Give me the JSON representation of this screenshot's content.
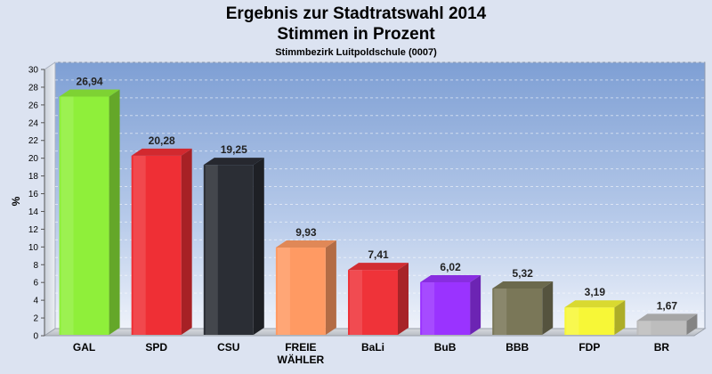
{
  "chart_data": {
    "type": "bar",
    "title_line1": "Ergebnis zur Stadtratswahl 2014",
    "title_line2": "Stimmen in Prozent",
    "subtitle": "Stimmbezirk Luitpoldschule (0007)",
    "ylabel": "%",
    "xlabel": "",
    "ylim": [
      0,
      30
    ],
    "yticks": [
      0,
      2,
      4,
      6,
      8,
      10,
      12,
      14,
      16,
      18,
      20,
      22,
      24,
      26,
      28,
      30
    ],
    "grid": true,
    "categories": [
      "GAL",
      "SPD",
      "CSU",
      "FREIE WÄHLER",
      "BaLi",
      "BuB",
      "BBB",
      "FDP",
      "BR"
    ],
    "category_lines": [
      [
        "GAL"
      ],
      [
        "SPD"
      ],
      [
        "CSU"
      ],
      [
        "FREIE",
        "WÄHLER"
      ],
      [
        "BaLi"
      ],
      [
        "BuB"
      ],
      [
        "BBB"
      ],
      [
        "FDP"
      ],
      [
        "BR"
      ]
    ],
    "values": [
      26.94,
      20.28,
      19.25,
      9.93,
      7.41,
      6.02,
      5.32,
      3.19,
      1.67
    ],
    "value_labels": [
      "26,94",
      "20,28",
      "19,25",
      "9,93",
      "7,41",
      "6,02",
      "5,32",
      "3,19",
      "1,67"
    ],
    "colors": [
      "#8fef3a",
      "#ef2f35",
      "#2b2e35",
      "#ff9a63",
      "#ef3339",
      "#9a33ff",
      "#7a7758",
      "#f7f737",
      "#bdbdbd"
    ]
  }
}
